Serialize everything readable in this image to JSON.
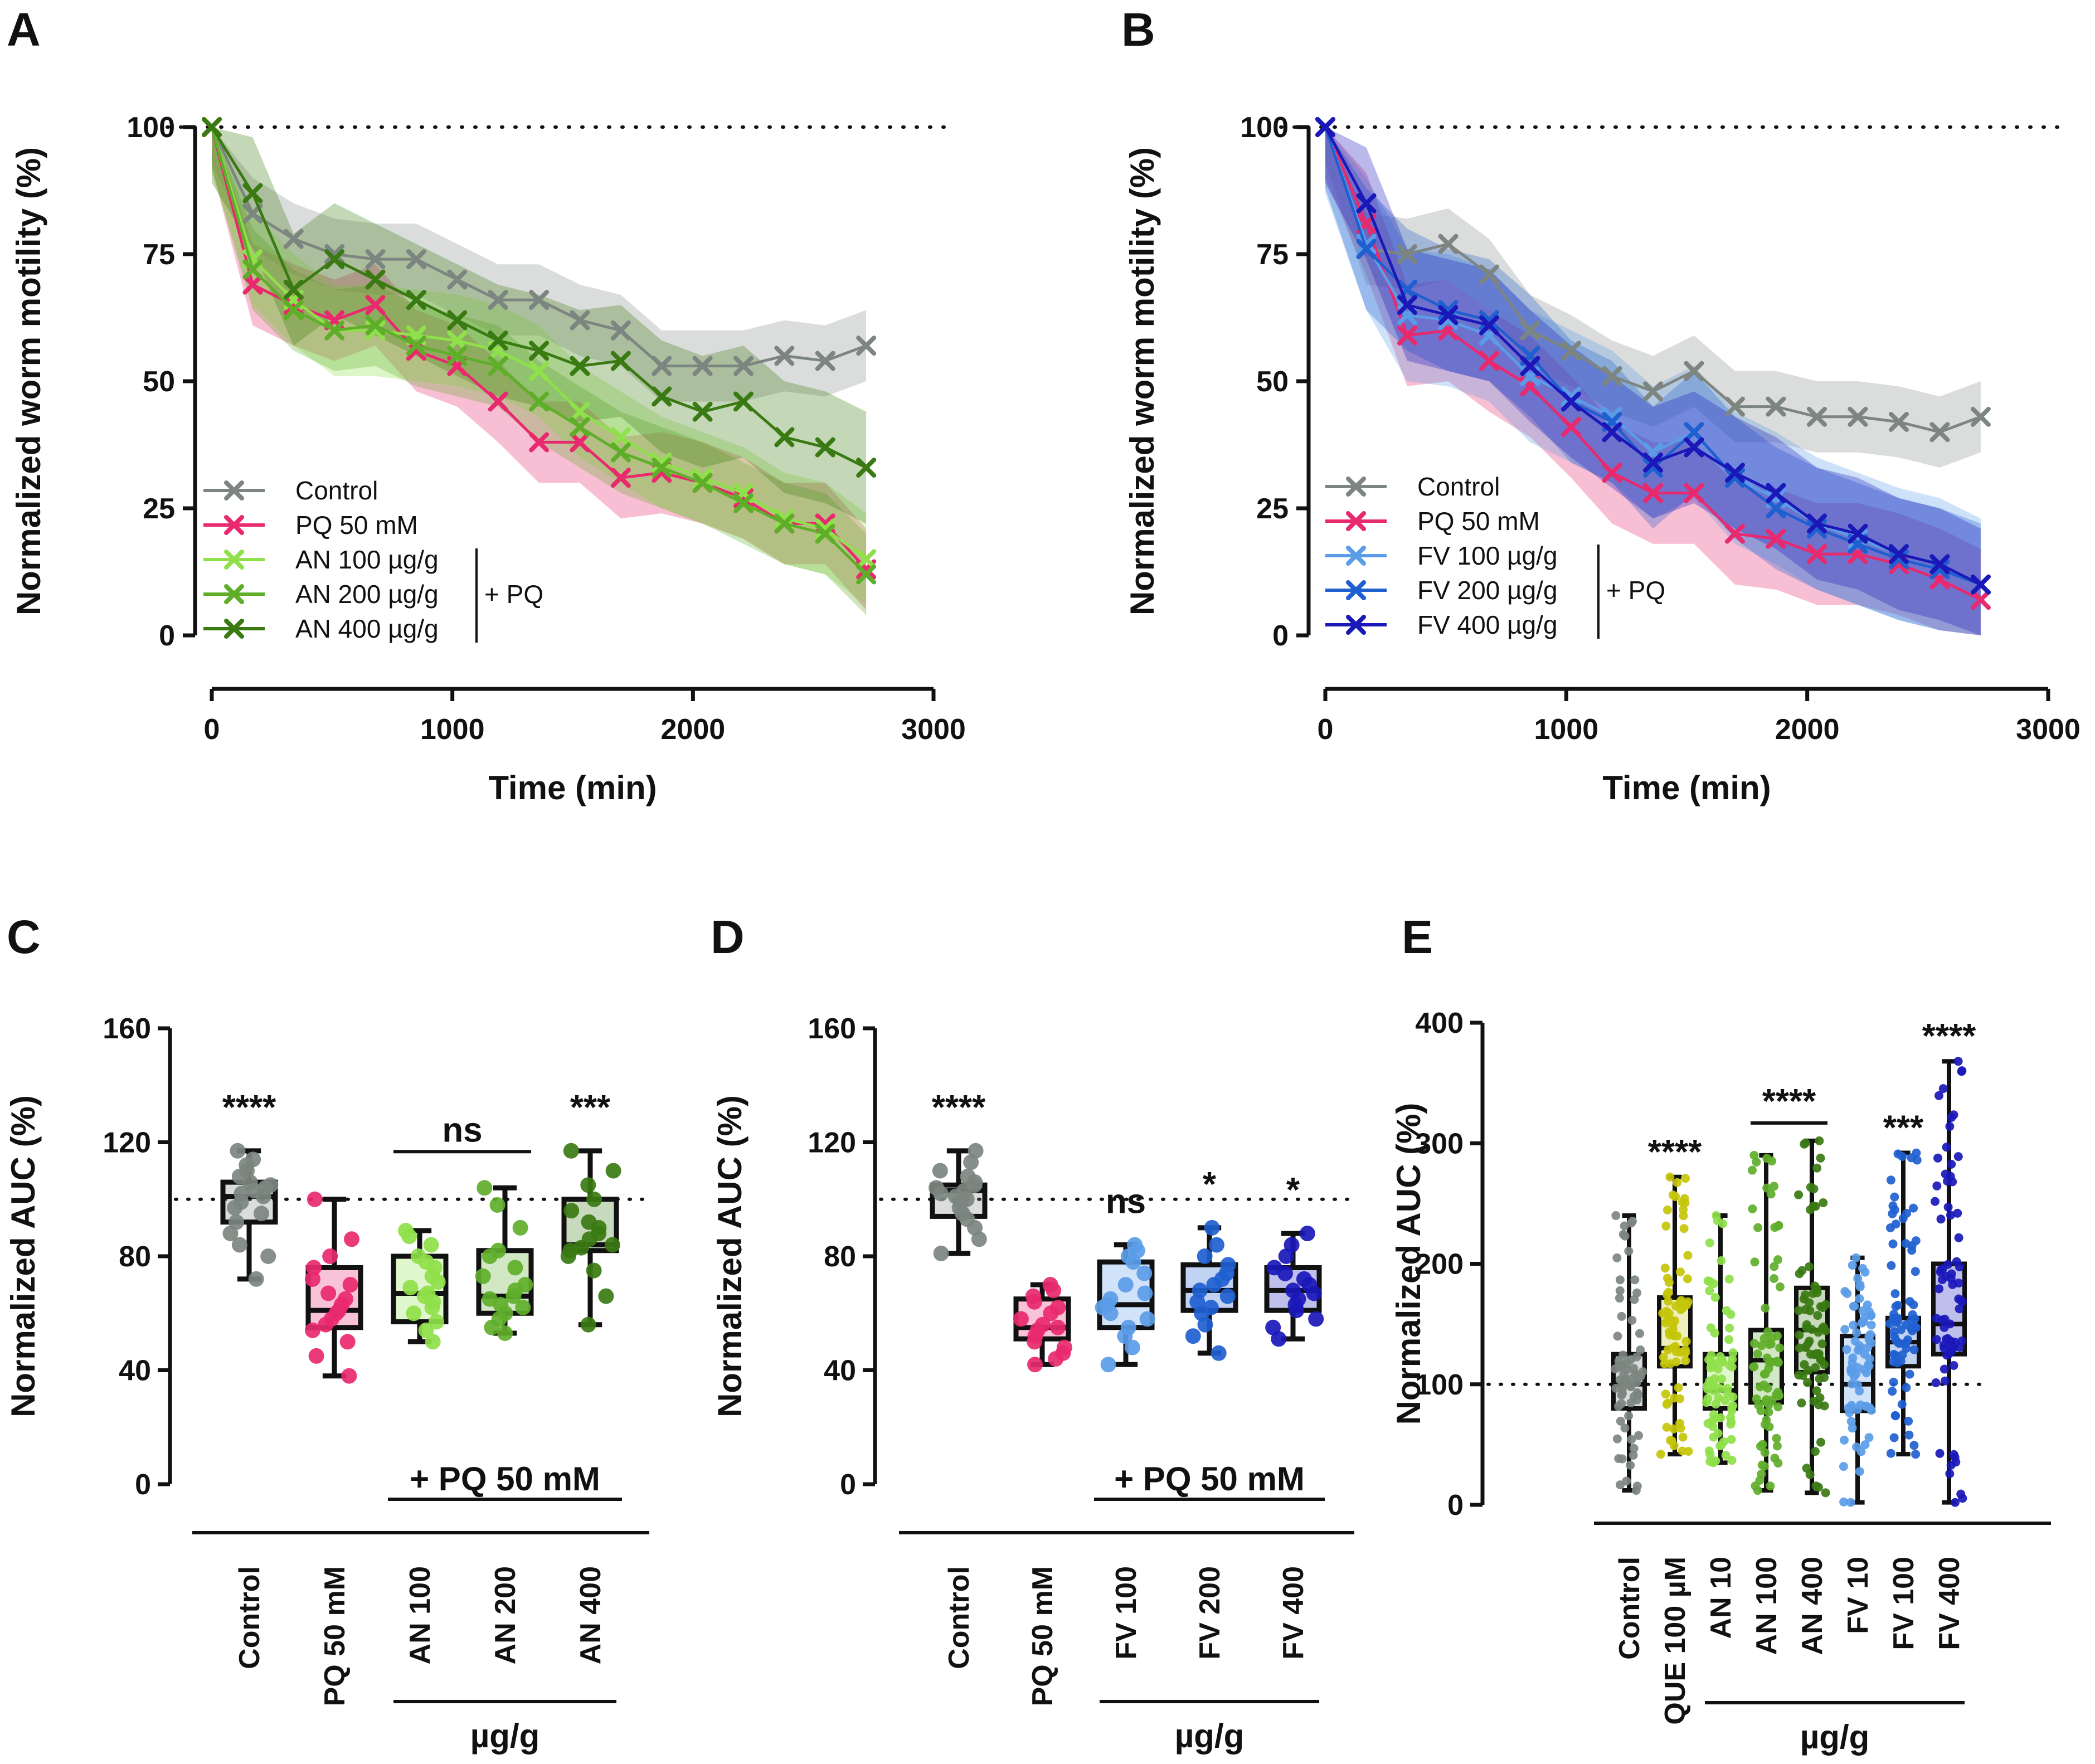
{
  "colors": {
    "control": "#7c8580",
    "pq": "#e8296e",
    "an100": "#8fe04a",
    "an200": "#5fae2a",
    "an400": "#3a7a12",
    "fv100": "#5b9ce8",
    "fv200": "#1f5fd0",
    "fv400": "#1a18b8",
    "que": "#c6c50a",
    "axis": "#111111"
  },
  "chart_data": [
    {
      "panel": "A",
      "type": "line",
      "xlabel": "Time (min)",
      "ylabel": "Normalized worm motility (%)",
      "xlim": [
        0,
        3000
      ],
      "ylim": [
        0,
        100
      ],
      "xticks": [
        0,
        1000,
        2000,
        3000
      ],
      "yticks": [
        0,
        25,
        50,
        75,
        100
      ],
      "reference_line": 100,
      "legend_group_label": "+ PQ",
      "x": [
        0,
        170,
        340,
        510,
        680,
        850,
        1020,
        1190,
        1360,
        1530,
        1700,
        1870,
        2040,
        2210,
        2380,
        2550,
        2720
      ],
      "series": [
        {
          "name": "Control",
          "color_key": "control",
          "values": [
            100,
            83,
            78,
            75,
            74,
            74,
            70,
            66,
            66,
            62,
            60,
            53,
            53,
            53,
            55,
            54,
            57
          ],
          "band": 7
        },
        {
          "name": "PQ 50 mM",
          "color_key": "pq",
          "values": [
            100,
            69,
            65,
            62,
            65,
            56,
            53,
            46,
            38,
            38,
            31,
            32,
            30,
            27,
            22,
            22,
            13
          ],
          "band": 8
        },
        {
          "name": "AN 100 µg/g",
          "color_key": "an100",
          "values": [
            100,
            74,
            66,
            60,
            60,
            59,
            58,
            56,
            52,
            44,
            39,
            34,
            31,
            28,
            23,
            21,
            15
          ],
          "band": 9
        },
        {
          "name": "AN 200 µg/g",
          "color_key": "an200",
          "values": [
            100,
            72,
            64,
            60,
            61,
            57,
            55,
            53,
            46,
            41,
            36,
            33,
            30,
            26,
            22,
            20,
            12
          ],
          "band": 8
        },
        {
          "name": "AN 400 µg/g",
          "color_key": "an400",
          "values": [
            100,
            87,
            68,
            74,
            70,
            66,
            62,
            58,
            56,
            53,
            54,
            47,
            44,
            46,
            39,
            37,
            33
          ],
          "band": 11
        }
      ]
    },
    {
      "panel": "B",
      "type": "line",
      "xlabel": "Time (min)",
      "ylabel": "Normalized worm motility (%)",
      "xlim": [
        0,
        3000
      ],
      "ylim": [
        0,
        100
      ],
      "xticks": [
        0,
        1000,
        2000,
        3000
      ],
      "yticks": [
        0,
        25,
        50,
        75,
        100
      ],
      "reference_line": 100,
      "legend_group_label": "+ PQ",
      "x": [
        0,
        170,
        340,
        510,
        680,
        850,
        1020,
        1190,
        1360,
        1530,
        1700,
        1870,
        2040,
        2210,
        2380,
        2550,
        2720
      ],
      "series": [
        {
          "name": "Control",
          "color_key": "control",
          "values": [
            100,
            76,
            75,
            77,
            71,
            60,
            56,
            51,
            48,
            52,
            45,
            45,
            43,
            43,
            42,
            40,
            43
          ],
          "band": 7
        },
        {
          "name": "PQ 50 mM",
          "color_key": "pq",
          "values": [
            100,
            81,
            59,
            60,
            54,
            49,
            41,
            32,
            28,
            28,
            20,
            19,
            16,
            16,
            14,
            11,
            7
          ],
          "band": 10
        },
        {
          "name": "FV 100 µg/g",
          "color_key": "fv100",
          "values": [
            100,
            77,
            63,
            62,
            59,
            51,
            47,
            43,
            36,
            40,
            31,
            27,
            22,
            19,
            16,
            14,
            10
          ],
          "band": 13
        },
        {
          "name": "FV 200 µg/g",
          "color_key": "fv200",
          "values": [
            100,
            76,
            68,
            64,
            62,
            55,
            46,
            42,
            33,
            40,
            31,
            25,
            21,
            18,
            15,
            13,
            10
          ],
          "band": 12
        },
        {
          "name": "FV 400 µg/g",
          "color_key": "fv400",
          "values": [
            100,
            85,
            65,
            63,
            61,
            53,
            46,
            40,
            34,
            37,
            32,
            28,
            22,
            20,
            16,
            14,
            10
          ],
          "band": 11
        }
      ]
    },
    {
      "panel": "C",
      "type": "box",
      "ylabel": "Normalized AUC (%)",
      "ylim": [
        0,
        160
      ],
      "yticks": [
        0,
        40,
        80,
        120,
        160
      ],
      "reference_line": 100,
      "treatment_label": "+ PQ 50 mM",
      "unit_label": "µg/g",
      "categories": [
        "Control",
        "PQ 50 mM",
        "AN 100",
        "AN 200",
        "AN 400"
      ],
      "color_keys": [
        "control",
        "pq",
        "an100",
        "an200",
        "an400"
      ],
      "boxes": [
        {
          "min": 72,
          "q1": 92,
          "median": 101,
          "q3": 106,
          "max": 117
        },
        {
          "min": 38,
          "q1": 55,
          "median": 61,
          "q3": 76,
          "max": 100
        },
        {
          "min": 50,
          "q1": 57,
          "median": 67,
          "q3": 80,
          "max": 89
        },
        {
          "min": 53,
          "q1": 60,
          "median": 66,
          "q3": 82,
          "max": 104
        },
        {
          "min": 56,
          "q1": 82,
          "median": 84,
          "q3": 100,
          "max": 117
        }
      ],
      "points": [
        [
          72,
          80,
          84,
          88,
          92,
          95,
          97,
          99,
          101,
          102,
          103,
          104,
          105,
          106,
          108,
          110,
          112,
          114,
          117
        ],
        [
          38,
          45,
          50,
          54,
          56,
          58,
          60,
          61,
          63,
          65,
          67,
          70,
          72,
          76,
          80,
          86,
          100
        ],
        [
          50,
          54,
          57,
          60,
          62,
          64,
          66,
          67,
          69,
          71,
          73,
          76,
          78,
          80,
          84,
          87,
          89
        ],
        [
          53,
          55,
          58,
          60,
          62,
          63,
          65,
          66,
          68,
          70,
          73,
          76,
          80,
          82,
          90,
          98,
          104
        ],
        [
          56,
          66,
          75,
          80,
          82,
          83,
          84,
          86,
          88,
          90,
          92,
          96,
          100,
          105,
          110,
          117
        ]
      ],
      "annotations": [
        {
          "index": 0,
          "text": "****"
        },
        {
          "span": [
            2,
            3
          ],
          "text": "ns"
        },
        {
          "index": 4,
          "text": "***"
        }
      ]
    },
    {
      "panel": "D",
      "type": "box",
      "ylabel": "Normalized AUC (%)",
      "ylim": [
        0,
        160
      ],
      "yticks": [
        0,
        40,
        80,
        120,
        160
      ],
      "reference_line": 100,
      "treatment_label": "+ PQ 50 mM",
      "unit_label": "µg/g",
      "categories": [
        "Control",
        "PQ 50 mM",
        "FV 100",
        "FV 200",
        "FV 400"
      ],
      "color_keys": [
        "control",
        "pq",
        "fv100",
        "fv200",
        "fv400"
      ],
      "boxes": [
        {
          "min": 81,
          "q1": 94,
          "median": 103,
          "q3": 105,
          "max": 117
        },
        {
          "min": 42,
          "q1": 51,
          "median": 55,
          "q3": 65,
          "max": 70
        },
        {
          "min": 42,
          "q1": 55,
          "median": 63,
          "q3": 78,
          "max": 84
        },
        {
          "min": 46,
          "q1": 61,
          "median": 68,
          "q3": 77,
          "max": 90
        },
        {
          "min": 51,
          "q1": 61,
          "median": 68,
          "q3": 76,
          "max": 88
        }
      ],
      "points": [
        [
          81,
          86,
          90,
          93,
          95,
          97,
          99,
          100,
          101,
          102,
          103,
          104,
          105,
          106,
          108,
          110,
          113,
          117
        ],
        [
          42,
          44,
          46,
          48,
          50,
          52,
          54,
          55,
          56,
          58,
          60,
          62,
          64,
          66,
          68,
          70
        ],
        [
          42,
          48,
          52,
          55,
          58,
          60,
          62,
          63,
          65,
          67,
          70,
          74,
          78,
          80,
          82,
          84
        ],
        [
          46,
          52,
          56,
          60,
          62,
          64,
          66,
          68,
          70,
          72,
          74,
          77,
          80,
          84,
          90
        ],
        [
          51,
          55,
          58,
          61,
          63,
          65,
          67,
          68,
          70,
          72,
          74,
          76,
          80,
          84,
          88
        ]
      ],
      "annotations": [
        {
          "index": 0,
          "text": "****"
        },
        {
          "index": 2,
          "text": "ns"
        },
        {
          "index": 3,
          "text": "*"
        },
        {
          "index": 4,
          "text": "*"
        }
      ]
    },
    {
      "panel": "E",
      "type": "box",
      "ylabel": "Normalized AUC (%)",
      "ylim": [
        0,
        400
      ],
      "yticks": [
        0,
        100,
        200,
        300,
        400
      ],
      "reference_line": 100,
      "unit_label": "µg/g",
      "categories": [
        "Control",
        "QUE 100 µM",
        "AN 10",
        "AN 100",
        "AN 400",
        "FV 10",
        "FV 100",
        "FV 400"
      ],
      "color_keys": [
        "control",
        "que",
        "an100",
        "an200",
        "an400",
        "fv100",
        "fv200",
        "fv400"
      ],
      "boxes": [
        {
          "min": 12,
          "q1": 80,
          "median": 100,
          "q3": 125,
          "max": 240
        },
        {
          "min": 42,
          "q1": 115,
          "median": 130,
          "q3": 172,
          "max": 272
        },
        {
          "min": 35,
          "q1": 80,
          "median": 95,
          "q3": 125,
          "max": 240
        },
        {
          "min": 12,
          "q1": 85,
          "median": 120,
          "q3": 145,
          "max": 290
        },
        {
          "min": 10,
          "q1": 110,
          "median": 145,
          "q3": 180,
          "max": 302
        },
        {
          "min": 2,
          "q1": 78,
          "median": 100,
          "q3": 140,
          "max": 205
        },
        {
          "min": 42,
          "q1": 115,
          "median": 135,
          "q3": 155,
          "max": 292
        },
        {
          "min": 2,
          "q1": 125,
          "median": 150,
          "q3": 200,
          "max": 368
        }
      ],
      "points_per_group": 70,
      "annotations": [
        {
          "index": 1,
          "text": "****"
        },
        {
          "span": [
            3,
            4
          ],
          "text": "****"
        },
        {
          "index": 6,
          "text": "***"
        },
        {
          "index": 7,
          "text": "****"
        }
      ]
    }
  ]
}
